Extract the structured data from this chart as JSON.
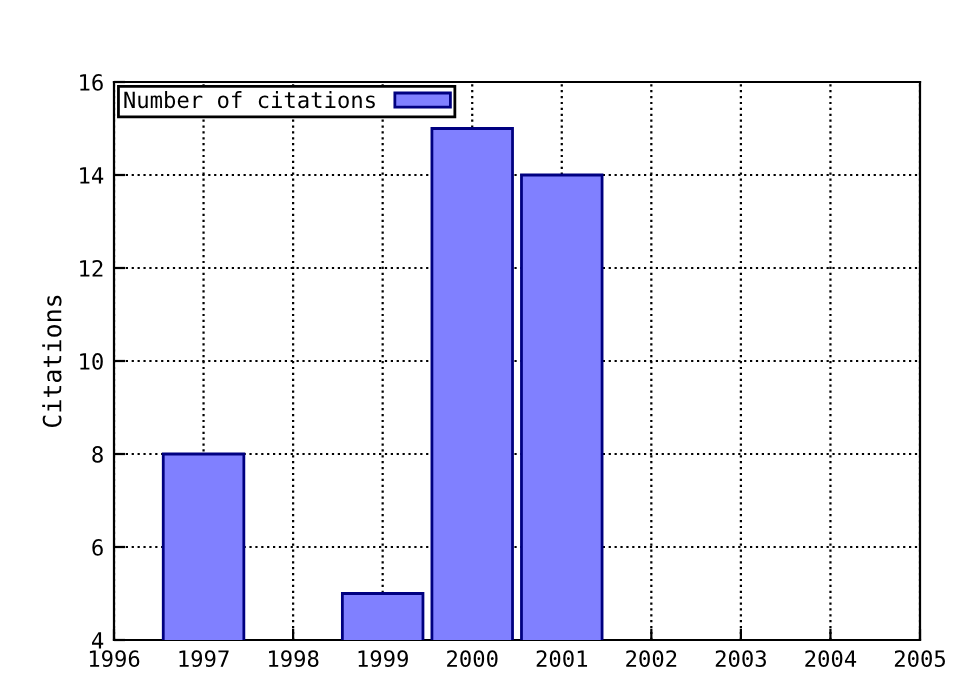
{
  "chart_data": {
    "type": "bar",
    "ylabel": "Citations",
    "x": [
      1997,
      1999,
      2000,
      2001
    ],
    "series": [
      {
        "name": "Number of citations",
        "color": "#8080ff",
        "values": [
          8,
          5,
          15,
          14
        ]
      }
    ],
    "xlim": [
      1996,
      2005
    ],
    "xticks": [
      1996,
      1997,
      1998,
      1999,
      2000,
      2001,
      2002,
      2003,
      2004,
      2005
    ],
    "ylim": [
      4,
      16
    ],
    "yticks": [
      4,
      6,
      8,
      10,
      12,
      14,
      16
    ],
    "grid": true,
    "legend": "top left",
    "line_style": "dotted"
  }
}
